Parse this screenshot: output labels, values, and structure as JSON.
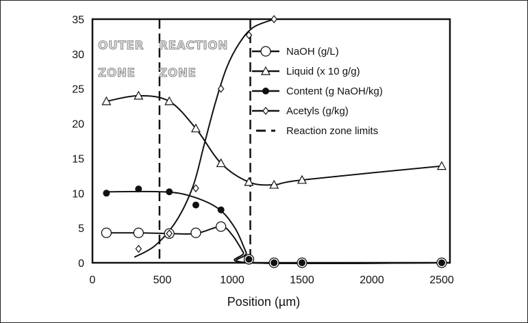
{
  "chart_data": {
    "type": "line",
    "xlabel": "Position (µm)",
    "ylabel": "",
    "xlim": [
      0,
      2500
    ],
    "ylim": [
      0,
      35
    ],
    "xticks": [
      0,
      500,
      1000,
      1500,
      2000,
      2500
    ],
    "yticks": [
      0,
      5,
      10,
      15,
      20,
      25,
      30,
      35
    ],
    "grid": false,
    "legend_placement": "top-right",
    "zone_labels": [
      {
        "line1": "OUTER",
        "line2": "ZONE"
      },
      {
        "line1": "REACTION",
        "line2": "ZONE"
      }
    ],
    "reaction_zone_limits": [
      480,
      1130
    ],
    "series": [
      {
        "name": "NaOH (g/L)",
        "marker": "open-circle",
        "x": [
          100,
          330,
          550,
          740,
          920,
          1120,
          1300,
          1500,
          2500
        ],
        "y": [
          4.3,
          4.3,
          4.2,
          4.3,
          5.2,
          0.5,
          0,
          0,
          0
        ]
      },
      {
        "name": "Liquid (x 10 g/g)",
        "marker": "open-triangle",
        "x": [
          100,
          330,
          550,
          740,
          920,
          1120,
          1300,
          1500,
          2500
        ],
        "y": [
          23.2,
          24.0,
          23.2,
          19.3,
          14.3,
          11.6,
          11.2,
          11.9,
          13.9
        ]
      },
      {
        "name": "Content (g NaOH/kg)",
        "marker": "filled-circle",
        "x": [
          100,
          330,
          550,
          740,
          920,
          1120,
          1300,
          1500,
          2500
        ],
        "y": [
          10.0,
          10.6,
          10.2,
          8.3,
          7.6,
          0.5,
          0,
          0,
          0
        ]
      },
      {
        "name": "Acetyls (g/kg)",
        "marker": "open-diamond",
        "x": [
          330,
          550,
          740,
          920,
          1120,
          1300
        ],
        "y": [
          2.0,
          4.2,
          10.7,
          25.0,
          32.7,
          35.0
        ]
      },
      {
        "name": "Reaction zone limits",
        "marker": "dashed-line"
      }
    ],
    "curves": {
      "NaOH (g/L)": [
        [
          100,
          4.3
        ],
        [
          330,
          4.3
        ],
        [
          550,
          4.2
        ],
        [
          740,
          4.2
        ],
        [
          920,
          5.2
        ],
        [
          1000,
          4
        ],
        [
          1080,
          1.5
        ],
        [
          1130,
          0
        ],
        [
          2500,
          0
        ]
      ],
      "Liquid (x 10 g/g)": [
        [
          100,
          23.2
        ],
        [
          330,
          24.0
        ],
        [
          550,
          23.2
        ],
        [
          740,
          19.3
        ],
        [
          920,
          14.3
        ],
        [
          1120,
          11.6
        ],
        [
          1300,
          11.2
        ],
        [
          1500,
          11.9
        ],
        [
          2500,
          13.9
        ]
      ],
      "Content (g NaOH/kg)": [
        [
          100,
          10.2
        ],
        [
          500,
          10.2
        ],
        [
          700,
          9.6
        ],
        [
          900,
          7.8
        ],
        [
          1020,
          5
        ],
        [
          1100,
          1.5
        ],
        [
          1140,
          0
        ],
        [
          2500,
          0
        ]
      ],
      "Acetyls (g/kg)": [
        [
          300,
          0.8
        ],
        [
          450,
          2.5
        ],
        [
          600,
          6
        ],
        [
          720,
          11
        ],
        [
          800,
          17
        ],
        [
          880,
          23
        ],
        [
          960,
          28
        ],
        [
          1050,
          31.5
        ],
        [
          1150,
          33.8
        ],
        [
          1300,
          35
        ]
      ]
    }
  }
}
